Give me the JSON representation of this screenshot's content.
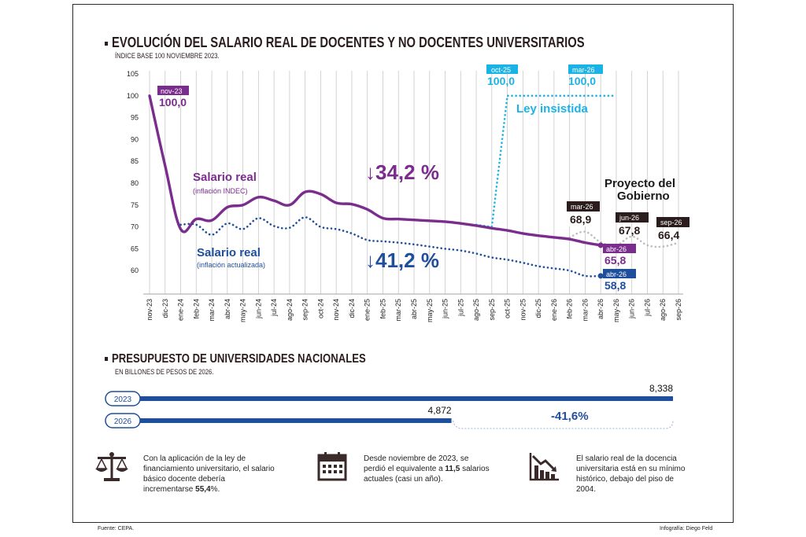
{
  "chart_data": [
    {
      "type": "line",
      "title": "EVOLUCIÓN DEL SALARIO REAL DE DOCENTES Y NO DOCENTES UNIVERSITARIOS",
      "subtitle": "ÍNDICE BASE 100 NOVIEMBRE 2023.",
      "ylim": [
        55,
        105
      ],
      "yticks": [
        60,
        65,
        70,
        75,
        80,
        85,
        90,
        95,
        100,
        105
      ],
      "categories": [
        "nov-23",
        "dic-23",
        "ene-24",
        "feb-24",
        "mar-24",
        "abr-24",
        "may-24",
        "jun-24",
        "jul-24",
        "ago-24",
        "sep-24",
        "oct-24",
        "nov-24",
        "dic-24",
        "ene-25",
        "feb-25",
        "mar-25",
        "abr-25",
        "may-25",
        "jun-25",
        "jul-25",
        "ago-25",
        "sep-25",
        "oct-25",
        "nov-25",
        "dic-25",
        "ene-26",
        "feb-26",
        "mar-26",
        "abr-26",
        "may-26",
        "jun-26",
        "jul-26",
        "ago-26",
        "sep-26"
      ],
      "series": [
        {
          "name": "Salario real",
          "note": "(inflación INDEC)",
          "color": "#7b2d8e",
          "style": "solid",
          "x": [
            0,
            1,
            2,
            3,
            4,
            5,
            6,
            7,
            8,
            9,
            10,
            11,
            12,
            13,
            14,
            15,
            16,
            17,
            18,
            19,
            20,
            21,
            22,
            23,
            24,
            25,
            26,
            27,
            28,
            29
          ],
          "values": [
            100,
            84,
            69.5,
            71.8,
            71.5,
            74.5,
            75,
            76.8,
            76,
            75,
            78,
            77.5,
            75.5,
            75.2,
            74,
            72,
            71.8,
            71.6,
            71.4,
            71.2,
            70.8,
            70.3,
            69.7,
            69.2,
            68.5,
            68,
            67.6,
            67.2,
            66.4,
            65.8
          ]
        },
        {
          "name": "Salario real",
          "note": "(inflación actualizada)",
          "color": "#1f4e9c",
          "style": "dotted",
          "x": [
            2,
            3,
            4,
            5,
            6,
            7,
            8,
            9,
            10,
            11,
            12,
            13,
            14,
            15,
            16,
            17,
            18,
            19,
            20,
            21,
            22,
            23,
            24,
            25,
            26,
            27,
            28,
            29
          ],
          "values": [
            70.5,
            70.5,
            68.2,
            70.8,
            69.5,
            72,
            70.2,
            69.8,
            72.2,
            70,
            69.5,
            68.5,
            67,
            66.7,
            66.4,
            66,
            65.5,
            65,
            64.6,
            63.9,
            63,
            62.5,
            61.8,
            61,
            60.5,
            60,
            58.8,
            58.8
          ]
        },
        {
          "name": "Ley insistida",
          "color": "#1bb3e6",
          "style": "dotted",
          "x": [
            21,
            22,
            23,
            24,
            25,
            26,
            27,
            28,
            29,
            30
          ],
          "values": [
            70.5,
            70,
            100,
            100,
            100,
            100,
            100,
            100,
            100,
            100
          ]
        },
        {
          "name": "Proyecto del Gobierno",
          "color": "#bdbdbd",
          "style": "dotted",
          "x": [
            27,
            28,
            29,
            30,
            31,
            32,
            33,
            34
          ],
          "values": [
            67.6,
            68.9,
            66.5,
            65.8,
            67.8,
            65.8,
            65.5,
            66.4
          ]
        }
      ],
      "annotations": [
        {
          "label": "nov-23",
          "value": "100,0"
        },
        {
          "label": "oct-25",
          "value": "100,0"
        },
        {
          "label": "mar-26",
          "value": "100,0"
        },
        {
          "label": "mar-26",
          "value": "68,9"
        },
        {
          "label": "jun-26",
          "value": "67,8"
        },
        {
          "label": "sep-26",
          "value": "66,4"
        },
        {
          "label": "abr-26",
          "value": "65,8"
        },
        {
          "label": "abr-26",
          "value": "58,8"
        },
        {
          "text": "↓34,2 %"
        },
        {
          "text": "↓41,2 %"
        }
      ]
    },
    {
      "type": "bar",
      "title": "PRESUPUESTO DE UNIVERSIDADES NACIONALES",
      "subtitle": "EN BILLONES DE PESOS DE 2026.",
      "categories": [
        "2023",
        "2026"
      ],
      "values": [
        8.338,
        4.872
      ],
      "value_labels": [
        "8,338",
        "4,872"
      ],
      "change": "-41,6%",
      "xlim": [
        0,
        8.338
      ]
    }
  ],
  "facts": [
    {
      "icon": "scales-icon",
      "pre": "Con la aplicación de la ley de financiamiento universitario, el salario básico docente debería incrementarse ",
      "bold": "55,4",
      "post": "%."
    },
    {
      "icon": "calendar-icon",
      "pre": "Desde noviembre de 2023, se perdió el equivalente a ",
      "bold": "11,5",
      "post": " salarios actuales (casi un año)."
    },
    {
      "icon": "chart-down-icon",
      "pre": "El salario real de la docencia universitaria está en su mínimo histórico, debajo del piso de 2004.",
      "bold": "",
      "post": ""
    }
  ],
  "footer": {
    "source": "Fuente: CEPA.",
    "credit": "Infografía: Diego Feld"
  }
}
